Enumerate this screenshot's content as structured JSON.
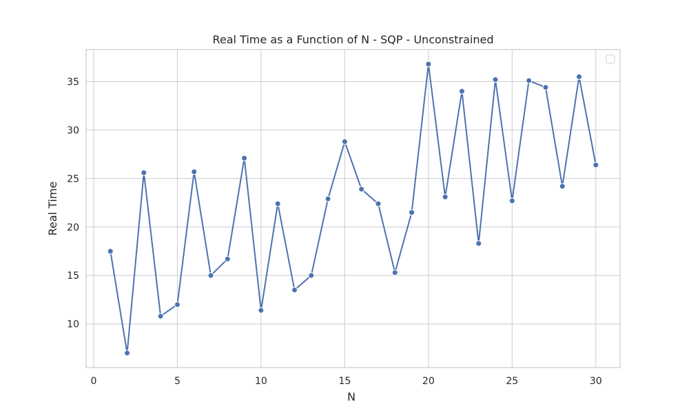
{
  "chart_data": {
    "type": "line",
    "title": "Real Time as a Function of N - SQP - Unconstrained",
    "xlabel": "N",
    "ylabel": "Real Time",
    "xlim": [
      -0.45,
      31.45
    ],
    "ylim": [
      5.5,
      38.3
    ],
    "xticks": [
      0,
      5,
      10,
      15,
      20,
      25,
      30
    ],
    "yticks": [
      10,
      15,
      20,
      25,
      30,
      35
    ],
    "grid": true,
    "legend": "top-right (empty)",
    "series": [
      {
        "color": "#4c72b0",
        "marker": "circle",
        "x": [
          1,
          2,
          3,
          4,
          5,
          6,
          7,
          8,
          9,
          10,
          11,
          12,
          13,
          14,
          15,
          16,
          17,
          18,
          19,
          20,
          21,
          22,
          23,
          24,
          25,
          26,
          27,
          28,
          29,
          30
        ],
        "y": [
          17.5,
          7.0,
          25.6,
          10.8,
          12.0,
          25.7,
          15.0,
          16.7,
          27.1,
          11.4,
          22.4,
          13.5,
          15.0,
          22.9,
          28.8,
          23.9,
          22.4,
          15.3,
          21.5,
          36.8,
          23.1,
          34.0,
          18.3,
          35.2,
          22.7,
          35.1,
          34.4,
          24.2,
          35.5,
          26.4
        ]
      }
    ]
  }
}
